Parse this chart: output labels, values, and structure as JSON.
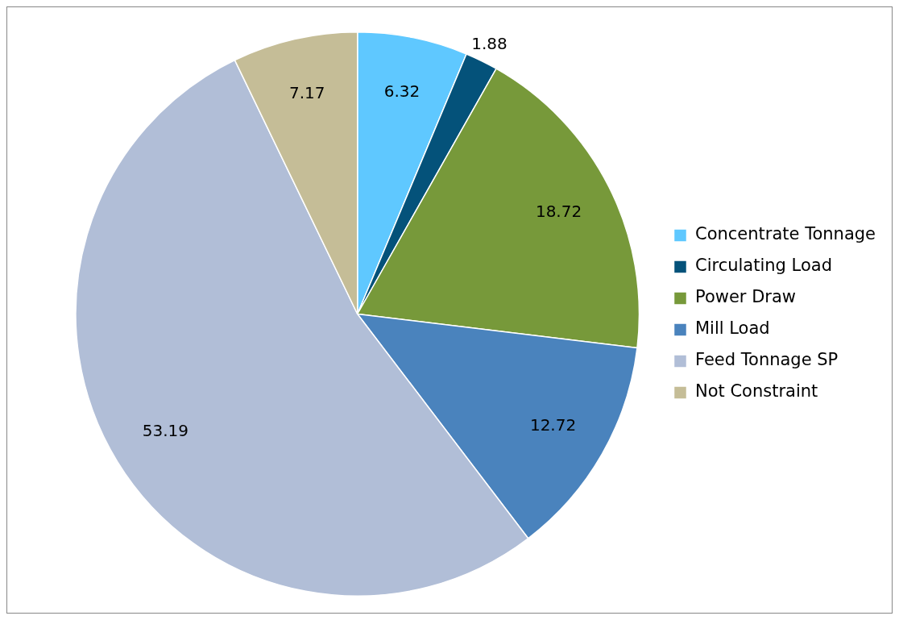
{
  "chart_data": {
    "type": "pie",
    "categories": [
      "Concentrate Tonnage",
      "Circulating Load",
      "Power Draw",
      "Mill Load",
      "Feed Tonnage SP",
      "Not Constraint"
    ],
    "values": [
      6.32,
      1.88,
      18.72,
      12.72,
      53.19,
      7.17
    ],
    "colors": [
      "#5fc8ff",
      "#04527a",
      "#77993a",
      "#4a83bd",
      "#b1bed7",
      "#c5bd97"
    ],
    "data_labels": true,
    "legend": "right"
  }
}
